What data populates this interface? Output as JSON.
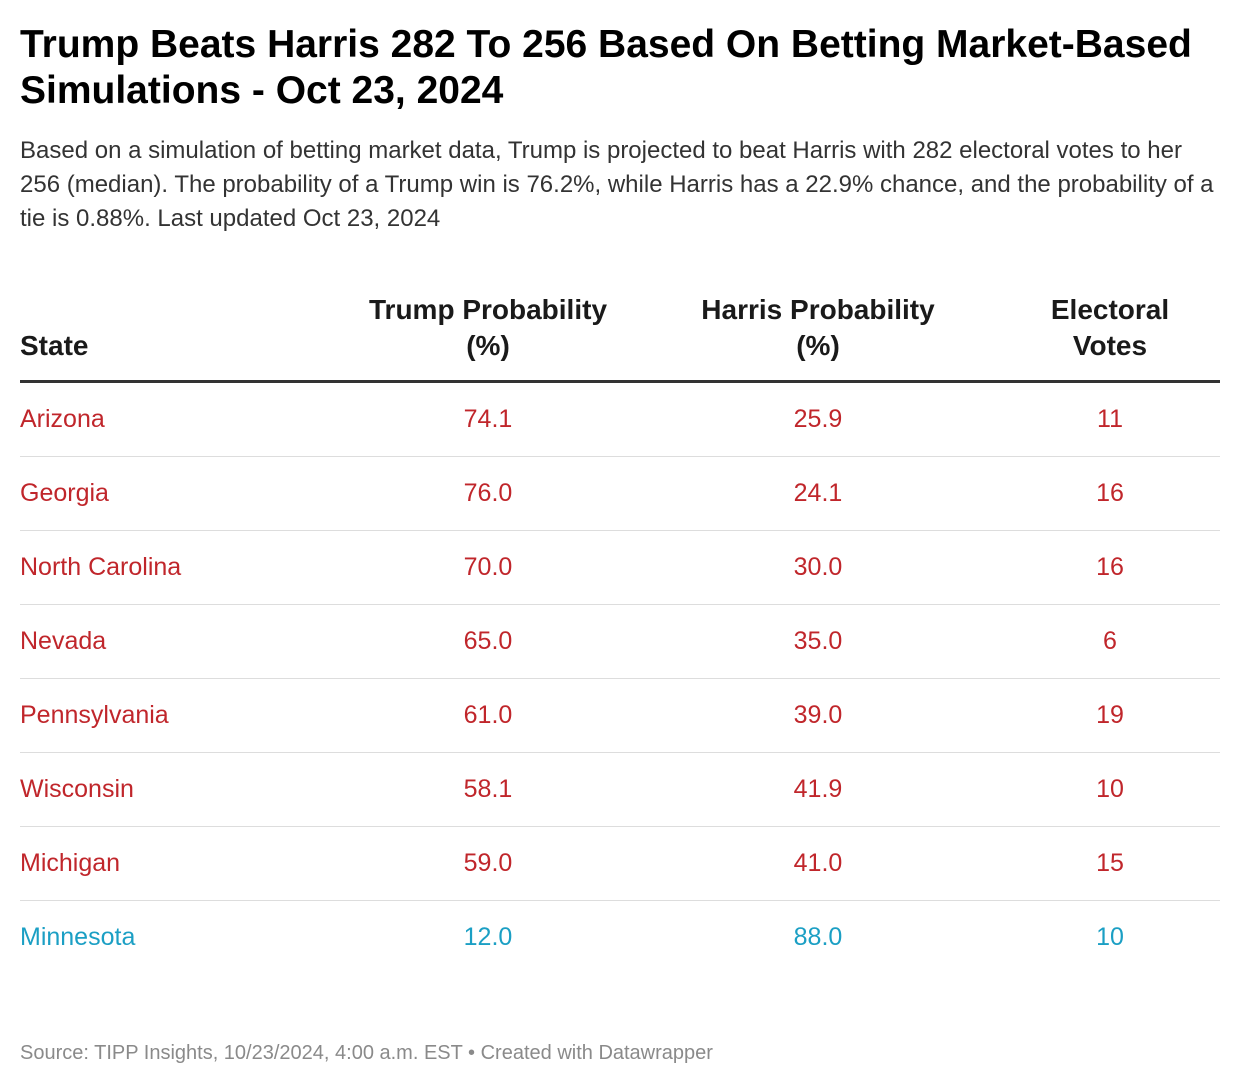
{
  "header": {
    "title": "Trump Beats Harris 282 To 256 Based On Betting Market-Based Simulations - Oct 23, 2024",
    "subtitle": "Based on a simulation of betting market data, Trump is projected to beat Harris with 282 electoral votes to her 256 (median). The probability of a Trump win is 76.2%, while Harris has a 22.9% chance, and the probability of a tie is 0.88%. Last updated Oct 23, 2024"
  },
  "footer": {
    "source": "Source: TIPP Insights, 10/23/2024, 4:00 a.m. EST • Created with Datawrapper"
  },
  "colors": {
    "trump_leaning": "#c0262b",
    "harris_leaning": "#1b9fc4"
  },
  "chart_data": {
    "type": "table",
    "columns": [
      "State",
      "Trump Probability (%)",
      "Harris Probability (%)",
      "Electoral Votes"
    ],
    "rows": [
      {
        "state": "Arizona",
        "trump": "74.1",
        "harris": "25.9",
        "votes": "11",
        "lean": "trump"
      },
      {
        "state": "Georgia",
        "trump": "76.0",
        "harris": "24.1",
        "votes": "16",
        "lean": "trump"
      },
      {
        "state": "North Carolina",
        "trump": "70.0",
        "harris": "30.0",
        "votes": "16",
        "lean": "trump"
      },
      {
        "state": "Nevada",
        "trump": "65.0",
        "harris": "35.0",
        "votes": "6",
        "lean": "trump"
      },
      {
        "state": "Pennsylvania",
        "trump": "61.0",
        "harris": "39.0",
        "votes": "19",
        "lean": "trump"
      },
      {
        "state": "Wisconsin",
        "trump": "58.1",
        "harris": "41.9",
        "votes": "10",
        "lean": "trump"
      },
      {
        "state": "Michigan",
        "trump": "59.0",
        "harris": "41.0",
        "votes": "15",
        "lean": "trump"
      },
      {
        "state": "Minnesota",
        "trump": "12.0",
        "harris": "88.0",
        "votes": "10",
        "lean": "harris"
      }
    ]
  }
}
